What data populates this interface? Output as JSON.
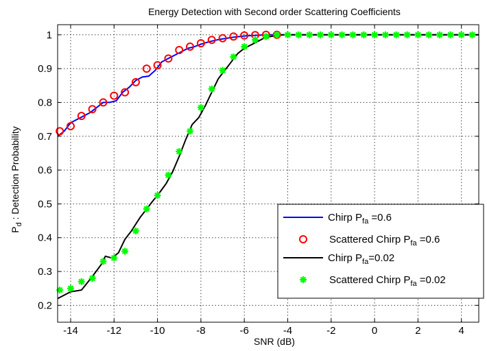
{
  "chart_data": {
    "type": "line",
    "title": "Energy Detection with Second order Scattering Coefficients",
    "xlabel": "SNR (dB)",
    "ylabel_main": "P",
    "ylabel_sub": "d",
    "ylabel_rest": " : Detection Probability",
    "xlim": [
      -14.6,
      4.8
    ],
    "ylim": [
      0.15,
      1.03
    ],
    "xticks": [
      -14,
      -12,
      -10,
      -8,
      -6,
      -4,
      -2,
      0,
      2,
      4
    ],
    "xtick_labels": [
      "-14",
      "-12",
      "-10",
      "-8",
      "-6",
      "-4",
      "-2",
      "0",
      "2",
      "4"
    ],
    "yticks": [
      0.2,
      0.3,
      0.4,
      0.5,
      0.6,
      0.7,
      0.8,
      0.9,
      1.0
    ],
    "ytick_labels": [
      "0.2",
      "0.3",
      "0.4",
      "0.5",
      "0.6",
      "0.7",
      "0.8",
      "0.9",
      "1"
    ],
    "grid": true,
    "legend_position": "bottom-right",
    "series": [
      {
        "legend_main": "Chirp P",
        "legend_sub": "fa",
        "legend_rest": " =0.6",
        "marker": "line",
        "color": "#0000ff",
        "x": [
          -14.6,
          -14.3,
          -14.0,
          -13.7,
          -13.4,
          -13.1,
          -12.8,
          -12.5,
          -12.2,
          -11.9,
          -11.6,
          -11.3,
          -11.0,
          -10.7,
          -10.4,
          -10.1,
          -9.8,
          -9.5,
          -9.2,
          -8.9,
          -8.6,
          -8.3,
          -8.0,
          -7.7,
          -7.4,
          -7.1,
          -6.8,
          -6.5,
          -6.2,
          -5.9,
          -5.6,
          -5.3,
          -5.0,
          -4.7,
          -4.4,
          -4.0,
          4.8
        ],
        "y": [
          0.7,
          0.715,
          0.74,
          0.75,
          0.76,
          0.77,
          0.785,
          0.8,
          0.8,
          0.805,
          0.83,
          0.845,
          0.865,
          0.875,
          0.878,
          0.895,
          0.92,
          0.93,
          0.94,
          0.95,
          0.96,
          0.965,
          0.972,
          0.978,
          0.983,
          0.987,
          0.99,
          0.993,
          0.995,
          0.997,
          0.998,
          0.999,
          1.0,
          1.0,
          1.0,
          1.0,
          1.0
        ]
      },
      {
        "legend_main": "Scattered Chirp  P",
        "legend_sub": "fa",
        "legend_rest": " =0.6",
        "marker": "circle",
        "color": "#ff0000",
        "x": [
          -14.5,
          -14.0,
          -13.5,
          -13.0,
          -12.5,
          -12.0,
          -11.5,
          -11.0,
          -10.5,
          -10.0,
          -9.5,
          -9.0,
          -8.5,
          -8.0,
          -7.5,
          -7.0,
          -6.5,
          -6.0,
          -5.5,
          -5.0,
          -4.5
        ],
        "y": [
          0.715,
          0.73,
          0.76,
          0.78,
          0.8,
          0.82,
          0.83,
          0.86,
          0.9,
          0.91,
          0.93,
          0.955,
          0.965,
          0.975,
          0.985,
          0.99,
          0.995,
          0.998,
          0.999,
          1.0,
          1.0
        ]
      },
      {
        "legend_main": "Chirp P",
        "legend_sub": "fa",
        "legend_rest": "=0.02",
        "marker": "line",
        "color": "#000000",
        "x": [
          -14.6,
          -14.0,
          -13.5,
          -13.0,
          -12.6,
          -12.4,
          -12.1,
          -11.8,
          -11.5,
          -11.2,
          -10.8,
          -10.5,
          -10.2,
          -10.0,
          -9.6,
          -9.3,
          -9.0,
          -8.7,
          -8.4,
          -8.1,
          -7.8,
          -7.5,
          -7.2,
          -6.9,
          -6.6,
          -6.3,
          -6.0,
          -5.7,
          -5.4,
          -5.1,
          -4.8,
          -4.5,
          -4.2,
          -4.0,
          4.8
        ],
        "y": [
          0.22,
          0.24,
          0.245,
          0.285,
          0.32,
          0.345,
          0.34,
          0.355,
          0.395,
          0.42,
          0.46,
          0.485,
          0.51,
          0.525,
          0.56,
          0.595,
          0.64,
          0.69,
          0.735,
          0.755,
          0.79,
          0.83,
          0.87,
          0.895,
          0.92,
          0.945,
          0.96,
          0.97,
          0.98,
          0.99,
          0.995,
          0.998,
          1.0,
          1.0,
          1.0
        ]
      },
      {
        "legend_main": "Scattered Chirp P",
        "legend_sub": "fa",
        "legend_rest": " =0.02",
        "marker": "star",
        "color": "#00ff00",
        "x": [
          -14.5,
          -14.0,
          -13.5,
          -13.0,
          -12.5,
          -12.0,
          -11.5,
          -11.0,
          -10.5,
          -10.0,
          -9.5,
          -9.0,
          -8.5,
          -8.0,
          -7.5,
          -7.0,
          -6.5,
          -6.0,
          -5.5,
          -5.0,
          -4.5,
          -4.0,
          -3.5,
          -3.0,
          -2.5,
          -2.0,
          -1.5,
          -1.0,
          -0.5,
          0.0,
          0.5,
          1.0,
          1.5,
          2.0,
          2.5,
          3.0,
          3.5,
          4.0,
          4.5
        ],
        "y": [
          0.245,
          0.25,
          0.27,
          0.28,
          0.33,
          0.34,
          0.36,
          0.42,
          0.485,
          0.525,
          0.585,
          0.655,
          0.715,
          0.785,
          0.84,
          0.895,
          0.935,
          0.965,
          0.985,
          0.995,
          1.0,
          1.0,
          1.0,
          1.0,
          1.0,
          1.0,
          1.0,
          1.0,
          1.0,
          1.0,
          1.0,
          1.0,
          1.0,
          1.0,
          1.0,
          1.0,
          1.0,
          1.0,
          1.0
        ]
      }
    ]
  }
}
